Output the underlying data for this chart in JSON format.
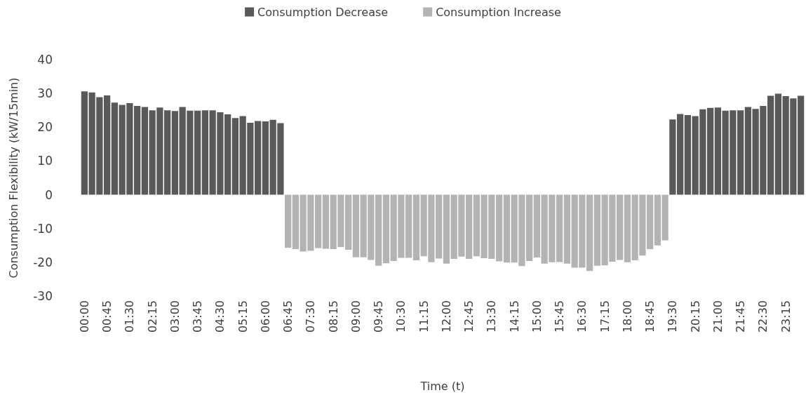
{
  "chart_data": {
    "type": "bar",
    "xlabel": "Time (t)",
    "ylabel": "Consumption Flexibility (kW/15min)",
    "categories": [
      "00:00",
      null,
      null,
      "00:45",
      null,
      null,
      "01:30",
      null,
      null,
      "02:15",
      null,
      null,
      "03:00",
      null,
      null,
      "03:45",
      null,
      null,
      "04:30",
      null,
      null,
      "05:15",
      null,
      null,
      "06:00",
      null,
      null,
      "06:45",
      null,
      null,
      "07:30",
      null,
      null,
      "08:15",
      null,
      null,
      "09:00",
      null,
      null,
      "09:45",
      null,
      null,
      "10:30",
      null,
      null,
      "11:15",
      null,
      null,
      "12:00",
      null,
      null,
      "12:45",
      null,
      null,
      "13:30",
      null,
      null,
      "14:15",
      null,
      null,
      "15:00",
      null,
      null,
      "15:45",
      null,
      null,
      "16:30",
      null,
      null,
      "17:15",
      null,
      null,
      "18:00",
      null,
      null,
      "18:45",
      null,
      null,
      "19:30",
      null,
      null,
      "20:15",
      null,
      null,
      "21:00",
      null,
      null,
      "21:45",
      null,
      null,
      "22:30",
      null,
      null,
      "23:15",
      null,
      null
    ],
    "series": [
      {
        "name": "Consumption Decrease",
        "color": "#595959",
        "values": [
          30.6,
          30.3,
          28.9,
          29.4,
          27.3,
          26.6,
          27.1,
          26.3,
          26.0,
          25.0,
          25.8,
          25.0,
          24.8,
          26.0,
          24.9,
          24.9,
          25.0,
          25.0,
          24.4,
          23.8,
          22.7,
          23.3,
          21.3,
          21.8,
          21.7,
          22.2,
          21.2,
          null,
          null,
          null,
          null,
          null,
          null,
          null,
          null,
          null,
          null,
          null,
          null,
          null,
          null,
          null,
          null,
          null,
          null,
          null,
          null,
          null,
          null,
          null,
          null,
          null,
          null,
          null,
          null,
          null,
          null,
          null,
          null,
          null,
          null,
          null,
          null,
          null,
          null,
          null,
          null,
          null,
          null,
          null,
          null,
          null,
          null,
          null,
          null,
          null,
          null,
          null,
          22.3,
          23.9,
          23.6,
          23.3,
          25.3,
          25.7,
          25.8,
          24.9,
          25.0,
          25.0,
          26.0,
          25.4,
          26.3,
          29.3,
          29.9,
          29.2,
          28.5,
          29.3
        ]
      },
      {
        "name": "Consumption Increase",
        "color": "#b3b3b3",
        "values": [
          null,
          null,
          null,
          null,
          null,
          null,
          null,
          null,
          null,
          null,
          null,
          null,
          null,
          null,
          null,
          null,
          null,
          null,
          null,
          null,
          null,
          null,
          null,
          null,
          null,
          null,
          null,
          -15.7,
          -16.1,
          -16.8,
          -16.6,
          -15.8,
          -16.0,
          -16.1,
          -15.5,
          -16.3,
          -18.5,
          -18.5,
          -19.3,
          -21.0,
          -20.3,
          -19.6,
          -18.7,
          -18.7,
          -19.4,
          -18.2,
          -20.0,
          -18.9,
          -20.4,
          -19.0,
          -18.3,
          -19.0,
          -18.2,
          -18.8,
          -19.0,
          -19.7,
          -20.1,
          -20.1,
          -21.1,
          -19.6,
          -18.6,
          -20.4,
          -20.0,
          -19.9,
          -20.4,
          -21.6,
          -21.6,
          -22.6,
          -21.0,
          -20.9,
          -19.8,
          -19.3,
          -20.0,
          -19.4,
          -18.0,
          -16.1,
          -15.0,
          -13.5,
          null,
          null,
          null,
          null,
          null,
          null,
          null,
          null,
          null,
          null,
          null,
          null,
          null,
          null,
          null,
          null,
          null,
          null
        ]
      }
    ],
    "ylim": [
      -30,
      40
    ],
    "yticks": [
      -30,
      -20,
      -10,
      0,
      10,
      20,
      30,
      40
    ],
    "grid": false,
    "legend": "top"
  }
}
